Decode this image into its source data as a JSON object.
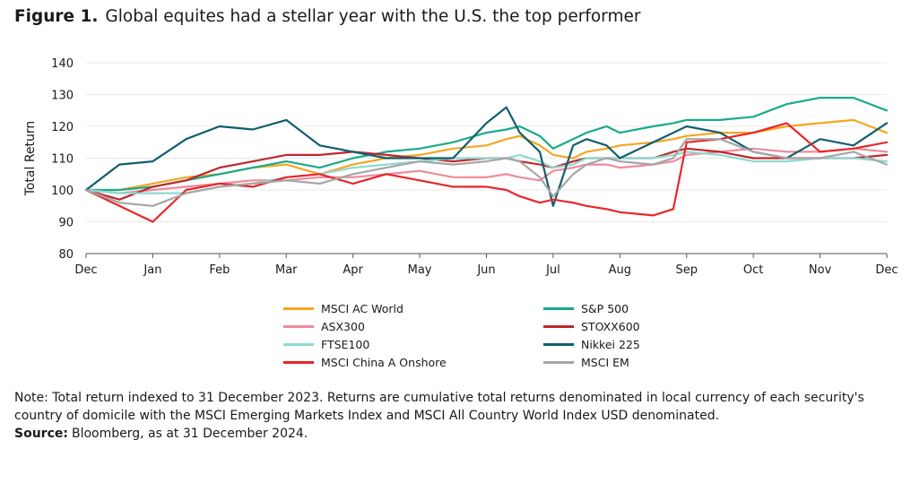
{
  "figure": {
    "label": "Figure 1.",
    "title": "Global equites had a stellar year with the U.S. the top performer"
  },
  "chart_data": {
    "type": "line",
    "ylabel": "Total Return",
    "xlabel": "",
    "ylim": [
      80,
      140
    ],
    "yticks": [
      80,
      90,
      100,
      110,
      120,
      130,
      140
    ],
    "x_ticks": [
      "Dec",
      "Jan",
      "Feb",
      "Mar",
      "Apr",
      "May",
      "Jun",
      "Jul",
      "Aug",
      "Sep",
      "Oct",
      "Nov",
      "Dec"
    ],
    "grid": "horizontal",
    "legend_position": "bottom",
    "x": [
      0,
      0.5,
      1,
      1.5,
      2,
      2.5,
      3,
      3.5,
      4,
      4.5,
      5,
      5.5,
      6,
      6.3,
      6.5,
      6.8,
      7,
      7.3,
      7.5,
      7.8,
      8,
      8.5,
      8.8,
      9,
      9.5,
      10,
      10.5,
      11,
      11.5,
      12
    ],
    "series": [
      {
        "name": "MSCI AC World",
        "color": "#F5A623",
        "values": [
          100,
          100,
          102,
          104,
          105,
          107,
          108,
          105,
          108,
          110,
          111,
          113,
          114,
          116,
          117,
          114,
          111,
          110,
          112,
          113,
          114,
          115,
          116,
          117,
          118,
          118,
          120,
          121,
          122,
          118
        ]
      },
      {
        "name": "S&P 500",
        "color": "#1AAA8A",
        "values": [
          100,
          100,
          101,
          103,
          105,
          107,
          109,
          107,
          110,
          112,
          113,
          115,
          118,
          119,
          120,
          117,
          113,
          116,
          118,
          120,
          118,
          120,
          121,
          122,
          122,
          123,
          127,
          129,
          129,
          125
        ]
      },
      {
        "name": "ASX300",
        "color": "#EF8A9B",
        "values": [
          100,
          99,
          100,
          101,
          102,
          103,
          103,
          104,
          104,
          105,
          106,
          104,
          104,
          105,
          104,
          103,
          106,
          107,
          108,
          108,
          107,
          108,
          109,
          111,
          112,
          113,
          112,
          112,
          113,
          112
        ]
      },
      {
        "name": "STOXX600",
        "color": "#C0272D",
        "values": [
          100,
          97,
          101,
          103,
          107,
          109,
          111,
          111,
          112,
          111,
          110,
          109,
          110,
          110,
          109,
          108,
          107,
          109,
          110,
          110,
          110,
          110,
          112,
          113,
          112,
          110,
          110,
          110,
          110,
          111
        ]
      },
      {
        "name": "FTSE100",
        "color": "#8ED9D2",
        "values": [
          100,
          99,
          99,
          99,
          101,
          102,
          104,
          105,
          107,
          108,
          109,
          110,
          110,
          110,
          111,
          109,
          107,
          108,
          110,
          110,
          110,
          110,
          111,
          112,
          111,
          109,
          109,
          110,
          110,
          109
        ]
      },
      {
        "name": "Nikkei 225",
        "color": "#115E70",
        "values": [
          100,
          108,
          109,
          116,
          120,
          119,
          122,
          114,
          112,
          110,
          110,
          110,
          121,
          126,
          118,
          112,
          95,
          114,
          116,
          114,
          110,
          115,
          118,
          120,
          118,
          112,
          110,
          116,
          114,
          121
        ]
      },
      {
        "name": "MSCI China A Onshore",
        "color": "#E8262A",
        "values": [
          100,
          95,
          90,
          100,
          102,
          101,
          104,
          105,
          102,
          105,
          103,
          101,
          101,
          100,
          98,
          96,
          97,
          96,
          95,
          94,
          93,
          92,
          94,
          115,
          116,
          118,
          121,
          112,
          113,
          115
        ]
      },
      {
        "name": "MSCI EM",
        "color": "#A6A6A6",
        "values": [
          100,
          96,
          95,
          99,
          101,
          102,
          103,
          102,
          105,
          107,
          109,
          108,
          109,
          110,
          109,
          104,
          98,
          105,
          108,
          110,
          109,
          108,
          110,
          116,
          116,
          112,
          110,
          110,
          112,
          108
        ]
      }
    ]
  },
  "note": {
    "text": "Note: Total return indexed to 31 December 2023. Returns are cumulative total returns denominated in local currency of each security's country of domicile with the MSCI Emerging Markets Index and MSCI All Country World Index USD denominated.",
    "source_label": "Source:",
    "source_text": "Bloomberg, as at 31 December 2024."
  }
}
